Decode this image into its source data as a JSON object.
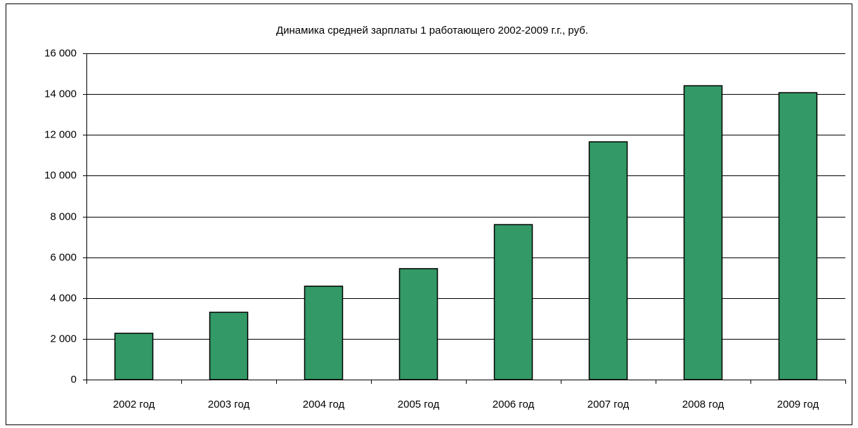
{
  "chart_data": {
    "type": "bar",
    "title": "Динамика средней зарплаты 1 работающего 2002-2009 г.г., руб.",
    "categories": [
      "2002 год",
      "2003 год",
      "2004 год",
      "2005 год",
      "2006 год",
      "2007 год",
      "2008 год",
      "2009 год"
    ],
    "values": [
      2270,
      3300,
      4580,
      5440,
      7600,
      11660,
      14410,
      14070
    ],
    "color": "#339966",
    "ylim": [
      0,
      16000
    ],
    "yticks": [
      0,
      {
        "value": 2000,
        "label": "2 000"
      },
      {
        "value": 4000,
        "label": "4 000"
      },
      {
        "value": 6000,
        "label": "6 000"
      },
      {
        "value": 8000,
        "label": "8 000"
      },
      {
        "value": 10000,
        "label": "10 000"
      },
      {
        "value": 12000,
        "label": "12 000"
      },
      {
        "value": 14000,
        "label": "14 000"
      },
      {
        "value": 16000,
        "label": "16 000"
      }
    ],
    "grid": true
  }
}
